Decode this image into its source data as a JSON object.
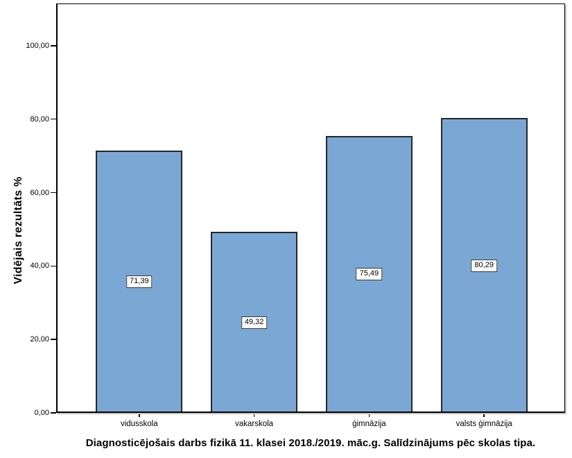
{
  "chart_data": {
    "type": "bar",
    "title": "Diagnosticējošais darbs fizikā 11. klasei 2018./2019. māc.g. Salīdzinājums pēc skolas tipa.",
    "ylabel": "Vidējais rezultāts %",
    "xlabel": "",
    "categories": [
      "vidusskola",
      "vakarskola",
      "ģimnāzija",
      "valsts ģimnāzija"
    ],
    "values": [
      71.39,
      49.32,
      75.49,
      80.29
    ],
    "value_labels": [
      "71,39",
      "49,32",
      "75,49",
      "80,29"
    ],
    "yticks": [
      {
        "value": 0,
        "label": "0,00"
      },
      {
        "value": 20,
        "label": "20,00"
      },
      {
        "value": 40,
        "label": "40,00"
      },
      {
        "value": 60,
        "label": "60,00"
      },
      {
        "value": 80,
        "label": "80,00"
      },
      {
        "value": 100,
        "label": "100,00"
      }
    ],
    "ylim": [
      0,
      111.5
    ],
    "grid": false,
    "legend": "none",
    "colors": {
      "bar_fill": "#7BA7D5",
      "bar_border": "#262626",
      "axis": "#000000",
      "label_box_bg": "#ffffff",
      "label_box_border": "#3a3a3a"
    }
  }
}
